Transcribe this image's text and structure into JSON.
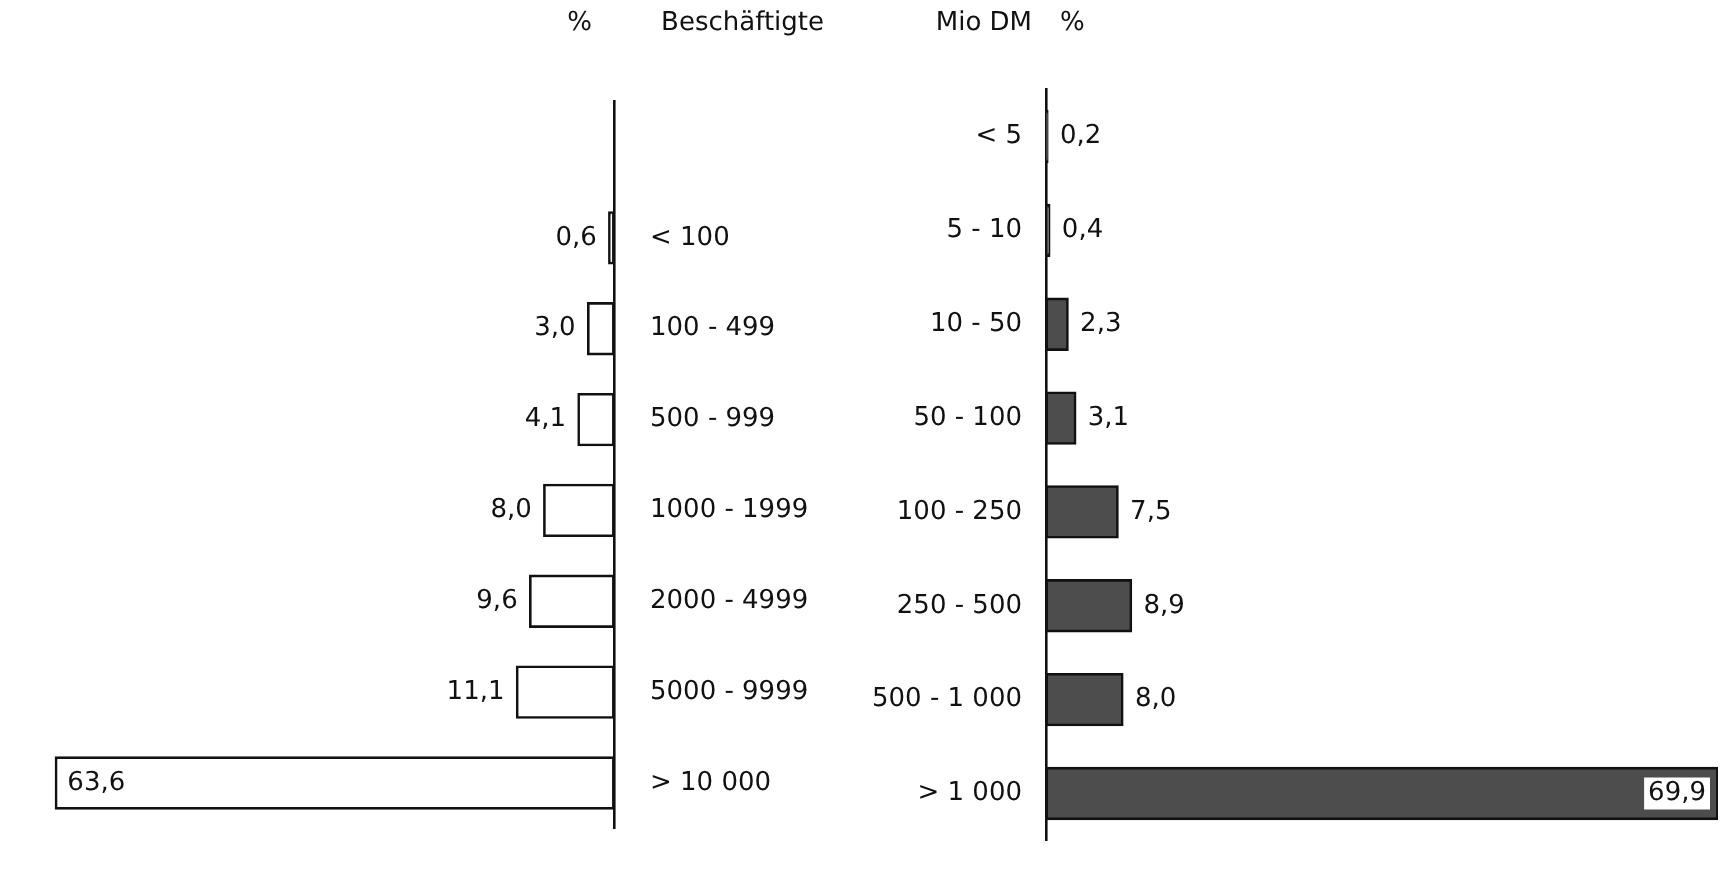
{
  "chart_data": [
    {
      "type": "bar",
      "orientation": "horizontal",
      "xlabel": "%",
      "ylabel": "Beschäftigte",
      "categories": [
        null,
        "< 100",
        "100 - 499",
        "500 - 999",
        "1000 - 1999",
        "2000 - 4999",
        "5000 - 9999",
        "> 10 000"
      ],
      "values": [
        null,
        0.6,
        3.0,
        4.1,
        8.0,
        9.6,
        11.1,
        63.6
      ],
      "value_labels": [
        null,
        "0,6",
        "3,0",
        "4,1",
        "8,0",
        "9,6",
        "11,1",
        "63,6"
      ],
      "color": "#ffffff",
      "tick_labels": "y",
      "grid": false,
      "legend": false
    },
    {
      "type": "bar",
      "orientation": "horizontal",
      "xlabel": "%",
      "ylabel": "Mio DM",
      "categories": [
        "< 5",
        "5 - 10",
        "10 - 50",
        "50 - 100",
        "100 - 250",
        "250 - 500",
        "500 - 1 000",
        "> 1 000"
      ],
      "values": [
        0.2,
        0.4,
        2.3,
        3.1,
        7.5,
        8.9,
        8.0,
        69.9
      ],
      "value_labels": [
        "0,2",
        "0,4",
        "2,3",
        "3,1",
        "7,5",
        "8,9",
        "8,0",
        "69,9"
      ],
      "color": "#4d4d4d",
      "tick_labels": "y",
      "grid": false,
      "legend": false
    }
  ]
}
